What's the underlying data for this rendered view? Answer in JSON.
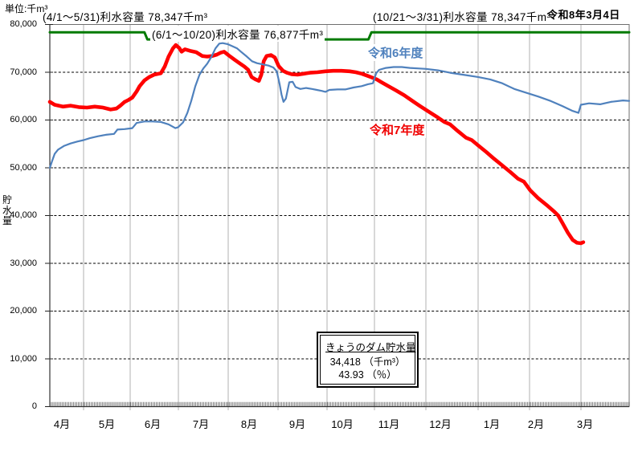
{
  "header": {
    "unit_label": "単位:千m³",
    "report_date": "令和8年3月4日",
    "capacity_labels": [
      "(4/1～5/31)利水容量  78,347千m³",
      "(6/1～10/20)利水容量  76,877千m³",
      "(10/21～3/31)利水容量  78,347千m³"
    ]
  },
  "info_box": {
    "title": "きょうのダム貯水量",
    "volume": "34,418",
    "volume_unit": "（千m³）",
    "percent": "43.93",
    "percent_unit": "（％）"
  },
  "chart_data": {
    "type": "line",
    "title": "",
    "ylabel": "貯水量 (千m³)",
    "y_axis": {
      "title": "貯\n水\n量",
      "ticks": [
        "0",
        "10,000",
        "20,000",
        "30,000",
        "40,000",
        "50,000",
        "60,000",
        "70,000",
        "80,000"
      ],
      "tick_step": 10000
    },
    "x_axis": {
      "months": [
        "4月",
        "5月",
        "6月",
        "7月",
        "8月",
        "9月",
        "10月",
        "11月",
        "12月",
        "1月",
        "2月",
        "3月"
      ],
      "unit": "month index from April 1 (0) to March 31 (12)"
    },
    "ylim": [
      0,
      80000
    ],
    "xlim": [
      0,
      12
    ],
    "grid": {
      "horizontal": "dashed",
      "vertical": "solid"
    },
    "series_labels": {
      "previous": "令和6年度",
      "current": "令和7年度"
    },
    "series": [
      {
        "name": "令和6年度",
        "role": "previous",
        "color": "#4f81bd",
        "points": [
          [
            0,
            50000
          ],
          [
            0.05,
            51500
          ],
          [
            0.1,
            52900
          ],
          [
            0.17,
            53800
          ],
          [
            0.3,
            54600
          ],
          [
            0.43,
            55100
          ],
          [
            0.57,
            55500
          ],
          [
            0.7,
            55800
          ],
          [
            0.83,
            56200
          ],
          [
            1.0,
            56600
          ],
          [
            1.16,
            56900
          ],
          [
            1.33,
            57100
          ],
          [
            1.4,
            58000
          ],
          [
            1.55,
            58100
          ],
          [
            1.71,
            58300
          ],
          [
            1.8,
            59400
          ],
          [
            1.96,
            59700
          ],
          [
            2.13,
            59700
          ],
          [
            2.3,
            59600
          ],
          [
            2.46,
            59100
          ],
          [
            2.6,
            58300
          ],
          [
            2.66,
            58500
          ],
          [
            2.76,
            59500
          ],
          [
            2.85,
            61500
          ],
          [
            2.93,
            64000
          ],
          [
            3.01,
            67000
          ],
          [
            3.1,
            69500
          ],
          [
            3.18,
            70800
          ],
          [
            3.26,
            71800
          ],
          [
            3.35,
            73300
          ],
          [
            3.43,
            75000
          ],
          [
            3.51,
            76000
          ],
          [
            3.58,
            76100
          ],
          [
            3.68,
            75900
          ],
          [
            3.77,
            75500
          ],
          [
            3.88,
            75000
          ],
          [
            3.96,
            74300
          ],
          [
            4.08,
            73300
          ],
          [
            4.19,
            72300
          ],
          [
            4.29,
            71900
          ],
          [
            4.39,
            71700
          ],
          [
            4.53,
            71400
          ],
          [
            4.63,
            71000
          ],
          [
            4.7,
            70200
          ],
          [
            4.76,
            67500
          ],
          [
            4.8,
            65300
          ],
          [
            4.84,
            63800
          ],
          [
            4.89,
            64500
          ],
          [
            4.96,
            67900
          ],
          [
            5.03,
            68000
          ],
          [
            5.09,
            66900
          ],
          [
            5.19,
            66500
          ],
          [
            5.31,
            66700
          ],
          [
            5.43,
            66500
          ],
          [
            5.53,
            66300
          ],
          [
            5.63,
            66100
          ],
          [
            5.71,
            65900
          ],
          [
            5.79,
            66300
          ],
          [
            5.96,
            66400
          ],
          [
            6.12,
            66400
          ],
          [
            6.29,
            66800
          ],
          [
            6.46,
            67100
          ],
          [
            6.59,
            67500
          ],
          [
            6.69,
            67700
          ],
          [
            6.76,
            69800
          ],
          [
            6.82,
            70500
          ],
          [
            6.96,
            70900
          ],
          [
            7.12,
            71100
          ],
          [
            7.29,
            71100
          ],
          [
            7.46,
            70900
          ],
          [
            7.62,
            70800
          ],
          [
            7.79,
            70700
          ],
          [
            8.04,
            70400
          ],
          [
            8.29,
            69900
          ],
          [
            8.62,
            69400
          ],
          [
            8.87,
            69000
          ],
          [
            9.12,
            68500
          ],
          [
            9.37,
            67700
          ],
          [
            9.62,
            66500
          ],
          [
            9.87,
            65700
          ],
          [
            10.12,
            64900
          ],
          [
            10.37,
            64000
          ],
          [
            10.62,
            62900
          ],
          [
            10.83,
            61900
          ],
          [
            10.95,
            61500
          ],
          [
            11.0,
            63200
          ],
          [
            11.17,
            63500
          ],
          [
            11.4,
            63300
          ],
          [
            11.62,
            63800
          ],
          [
            11.87,
            64100
          ],
          [
            12.0,
            64000
          ]
        ]
      },
      {
        "name": "令和7年度",
        "role": "current",
        "color": "#ff0000",
        "today": {
          "month_index": 11.05,
          "value": 34418
        },
        "points": [
          [
            0,
            63800
          ],
          [
            0.1,
            63200
          ],
          [
            0.27,
            62800
          ],
          [
            0.43,
            63000
          ],
          [
            0.6,
            62700
          ],
          [
            0.77,
            62600
          ],
          [
            0.93,
            62800
          ],
          [
            1.1,
            62600
          ],
          [
            1.26,
            62200
          ],
          [
            1.38,
            62400
          ],
          [
            1.46,
            63000
          ],
          [
            1.55,
            63800
          ],
          [
            1.63,
            64200
          ],
          [
            1.71,
            64700
          ],
          [
            1.8,
            66000
          ],
          [
            1.86,
            67100
          ],
          [
            1.96,
            68300
          ],
          [
            2.06,
            69000
          ],
          [
            2.16,
            69500
          ],
          [
            2.3,
            69800
          ],
          [
            2.38,
            71200
          ],
          [
            2.46,
            73300
          ],
          [
            2.55,
            75000
          ],
          [
            2.61,
            75700
          ],
          [
            2.68,
            75100
          ],
          [
            2.73,
            74300
          ],
          [
            2.8,
            74800
          ],
          [
            2.9,
            74500
          ],
          [
            3.03,
            74200
          ],
          [
            3.16,
            73400
          ],
          [
            3.26,
            73300
          ],
          [
            3.36,
            73400
          ],
          [
            3.46,
            73700
          ],
          [
            3.54,
            74100
          ],
          [
            3.61,
            74300
          ],
          [
            3.71,
            73500
          ],
          [
            3.83,
            72600
          ],
          [
            3.93,
            71900
          ],
          [
            4.03,
            71200
          ],
          [
            4.11,
            70500
          ],
          [
            4.18,
            69000
          ],
          [
            4.26,
            68500
          ],
          [
            4.33,
            68200
          ],
          [
            4.38,
            69500
          ],
          [
            4.43,
            72300
          ],
          [
            4.49,
            73400
          ],
          [
            4.58,
            73600
          ],
          [
            4.66,
            73100
          ],
          [
            4.74,
            71300
          ],
          [
            4.83,
            70300
          ],
          [
            4.91,
            69900
          ],
          [
            5.01,
            69600
          ],
          [
            5.13,
            69500
          ],
          [
            5.26,
            69700
          ],
          [
            5.39,
            69900
          ],
          [
            5.54,
            70000
          ],
          [
            5.71,
            70200
          ],
          [
            5.87,
            70300
          ],
          [
            6.04,
            70300
          ],
          [
            6.21,
            70200
          ],
          [
            6.34,
            70000
          ],
          [
            6.46,
            69700
          ],
          [
            6.57,
            69300
          ],
          [
            6.67,
            68900
          ],
          [
            6.77,
            68500
          ],
          [
            6.87,
            67900
          ],
          [
            7.01,
            67100
          ],
          [
            7.17,
            66200
          ],
          [
            7.34,
            65200
          ],
          [
            7.51,
            64000
          ],
          [
            7.67,
            62900
          ],
          [
            7.84,
            61800
          ],
          [
            8.01,
            60700
          ],
          [
            8.17,
            59600
          ],
          [
            8.29,
            59100
          ],
          [
            8.45,
            57700
          ],
          [
            8.62,
            56300
          ],
          [
            8.74,
            55800
          ],
          [
            8.87,
            54700
          ],
          [
            9.04,
            53300
          ],
          [
            9.2,
            51900
          ],
          [
            9.37,
            50500
          ],
          [
            9.54,
            49100
          ],
          [
            9.7,
            47700
          ],
          [
            9.82,
            47100
          ],
          [
            9.95,
            45300
          ],
          [
            10.12,
            43600
          ],
          [
            10.29,
            42200
          ],
          [
            10.45,
            40800
          ],
          [
            10.53,
            40000
          ],
          [
            10.62,
            38400
          ],
          [
            10.73,
            36400
          ],
          [
            10.83,
            34900
          ],
          [
            10.92,
            34300
          ],
          [
            11.0,
            34200
          ],
          [
            11.05,
            34418
          ]
        ]
      },
      {
        "name": "利水容量",
        "role": "capacity",
        "color": "#007a00",
        "points": [
          [
            0,
            78347
          ],
          [
            1.96,
            78347
          ],
          [
            2.02,
            76877
          ],
          [
            6.6,
            76877
          ],
          [
            6.66,
            78347
          ],
          [
            12,
            78347
          ]
        ]
      }
    ]
  }
}
